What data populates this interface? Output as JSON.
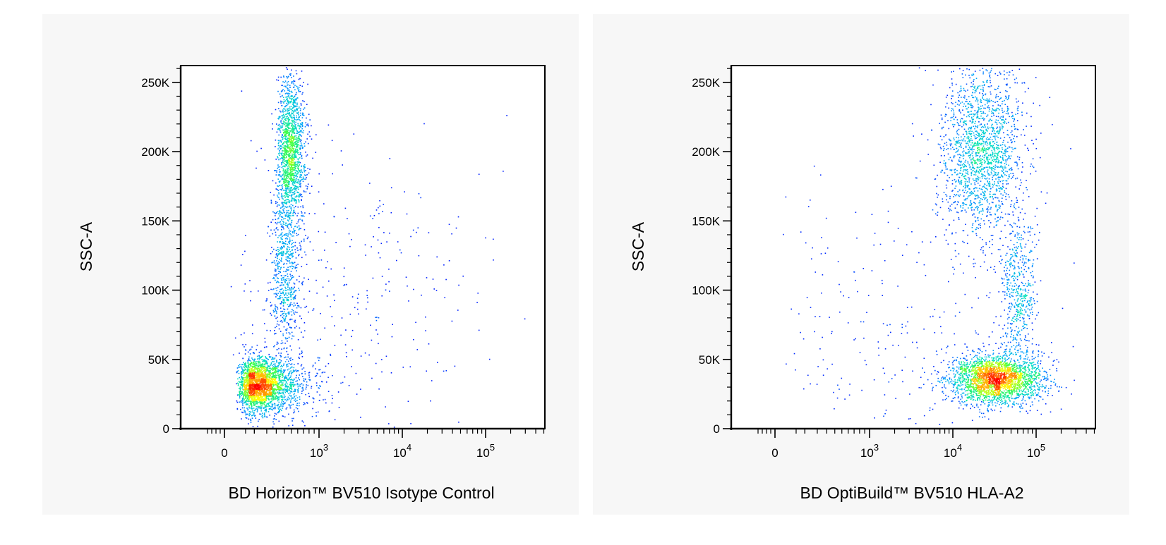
{
  "chart_data": [
    {
      "type": "scatter",
      "title": "",
      "xlabel": "BD Horizon™ BV510 Isotype Control",
      "ylabel": "SSC-A",
      "xscale": "biexponential (logicle)",
      "yscale": "linear",
      "ylim": [
        0,
        262144
      ],
      "x_ticks": [
        {
          "value": 0,
          "label": "0"
        },
        {
          "value": 1000,
          "base": "10",
          "exp": "3"
        },
        {
          "value": 10000,
          "base": "10",
          "exp": "4"
        },
        {
          "value": 100000,
          "base": "10",
          "exp": "5"
        }
      ],
      "y_ticks": [
        {
          "value": 0,
          "label": "0"
        },
        {
          "value": 50000,
          "label": "50K"
        },
        {
          "value": 100000,
          "label": "100K"
        },
        {
          "value": 150000,
          "label": "150K"
        },
        {
          "value": 200000,
          "label": "200K"
        },
        {
          "value": 250000,
          "label": "250K"
        }
      ],
      "density_colormap": [
        "#0000ff",
        "#00a0ff",
        "#00e0c0",
        "#40ff40",
        "#ffff00",
        "#ff8000",
        "#ff0000"
      ],
      "populations": [
        {
          "x_median": 150,
          "y_median": 32000,
          "x_spread_decades": 0.35,
          "y_sd": 10000,
          "weight": 0.5
        },
        {
          "x_median": 480,
          "y_median": 200000,
          "x_spread_decades": 0.09,
          "y_sd": 28000,
          "weight": 0.32
        },
        {
          "x_median": 400,
          "y_median": 110000,
          "x_spread_decades": 0.12,
          "y_sd": 30000,
          "weight": 0.12
        },
        {
          "x_median": 2000,
          "y_median": 100000,
          "x_spread_decades": 0.9,
          "y_sd": 60000,
          "weight": 0.06
        }
      ]
    },
    {
      "type": "scatter",
      "title": "",
      "xlabel": "BD OptiBuild™ BV510 HLA-A2",
      "ylabel": "SSC-A",
      "xscale": "biexponential (logicle)",
      "yscale": "linear",
      "ylim": [
        0,
        262144
      ],
      "x_ticks": [
        {
          "value": 0,
          "label": "0"
        },
        {
          "value": 1000,
          "base": "10",
          "exp": "3"
        },
        {
          "value": 10000,
          "base": "10",
          "exp": "4"
        },
        {
          "value": 100000,
          "base": "10",
          "exp": "5"
        }
      ],
      "y_ticks": [
        {
          "value": 0,
          "label": "0"
        },
        {
          "value": 50000,
          "label": "50K"
        },
        {
          "value": 100000,
          "label": "100K"
        },
        {
          "value": 150000,
          "label": "150K"
        },
        {
          "value": 200000,
          "label": "200K"
        },
        {
          "value": 250000,
          "label": "250K"
        }
      ],
      "density_colormap": [
        "#0000ff",
        "#00a0ff",
        "#00e0c0",
        "#40ff40",
        "#ffff00",
        "#ff8000",
        "#ff0000"
      ],
      "populations": [
        {
          "x_median": 32000,
          "y_median": 36000,
          "x_spread_decades": 0.28,
          "y_sd": 9000,
          "weight": 0.5
        },
        {
          "x_median": 22000,
          "y_median": 200000,
          "x_spread_decades": 0.25,
          "y_sd": 30000,
          "weight": 0.35
        },
        {
          "x_median": 60000,
          "y_median": 100000,
          "x_spread_decades": 0.12,
          "y_sd": 28000,
          "weight": 0.1
        },
        {
          "x_median": 2000,
          "y_median": 80000,
          "x_spread_decades": 0.9,
          "y_sd": 55000,
          "weight": 0.05
        }
      ]
    }
  ]
}
